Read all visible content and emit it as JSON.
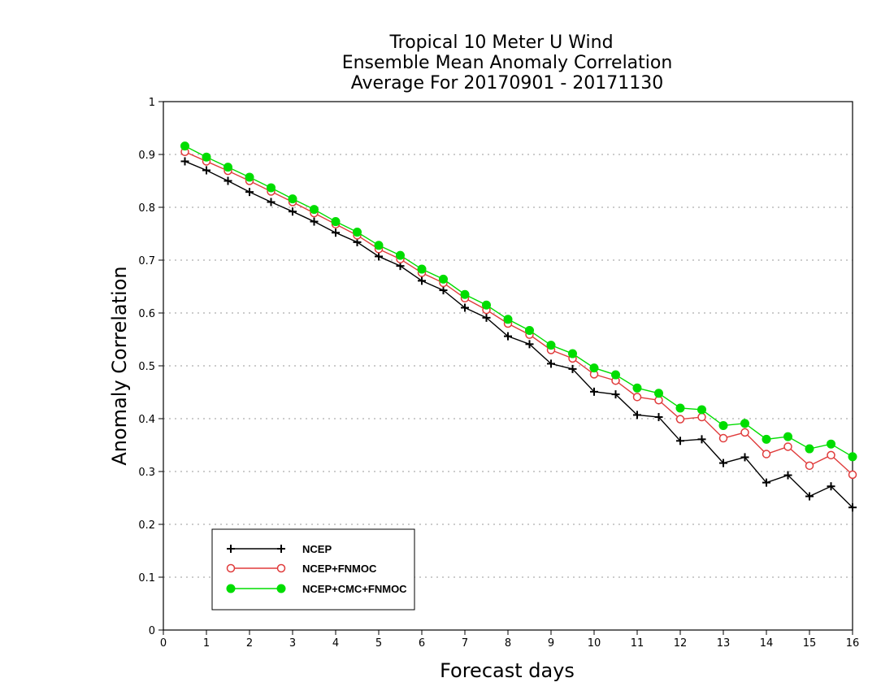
{
  "chart_data": {
    "type": "line",
    "title_lines": [
      "Tropical 10 Meter U Wind",
      "Ensemble Mean Anomaly Correlation",
      "Average For 20170901 - 20171130"
    ],
    "xlabel": "Forecast days",
    "ylabel": "Anomaly Correlation",
    "xlim": [
      0,
      16
    ],
    "ylim": [
      0,
      1
    ],
    "x_ticks": [
      "0",
      "1",
      "2",
      "3",
      "4",
      "5",
      "6",
      "7",
      "8",
      "9",
      "10",
      "11",
      "12",
      "13",
      "14",
      "15",
      "16"
    ],
    "y_ticks": [
      "0",
      "0.1",
      "0.2",
      "0.3",
      "0.4",
      "0.5",
      "0.6",
      "0.7",
      "0.8",
      "0.9",
      "1"
    ],
    "grid": "horizontal dotted",
    "legend_position": "bottom-left",
    "x": [
      0.5,
      1,
      1.5,
      2,
      2.5,
      3,
      3.5,
      4,
      4.5,
      5,
      5.5,
      6,
      6.5,
      7,
      7.5,
      8,
      8.5,
      9,
      9.5,
      10,
      10.5,
      11,
      11.5,
      12,
      12.5,
      13,
      13.5,
      14,
      14.5,
      15,
      15.5,
      16
    ],
    "series": [
      {
        "name": "NCEP",
        "color": "#000000",
        "marker": "plus",
        "values": [
          0.887,
          0.87,
          0.85,
          0.829,
          0.81,
          0.792,
          0.773,
          0.752,
          0.734,
          0.707,
          0.689,
          0.661,
          0.643,
          0.61,
          0.591,
          0.556,
          0.541,
          0.504,
          0.494,
          0.451,
          0.446,
          0.407,
          0.403,
          0.358,
          0.361,
          0.316,
          0.327,
          0.279,
          0.293,
          0.253,
          0.272,
          0.232
        ]
      },
      {
        "name": "NCEP+FNMOC",
        "color": "#e03c3c",
        "marker": "open-circle",
        "values": [
          0.905,
          0.887,
          0.869,
          0.85,
          0.83,
          0.81,
          0.789,
          0.768,
          0.747,
          0.721,
          0.702,
          0.676,
          0.657,
          0.628,
          0.606,
          0.58,
          0.559,
          0.53,
          0.514,
          0.484,
          0.472,
          0.441,
          0.435,
          0.399,
          0.403,
          0.363,
          0.374,
          0.333,
          0.347,
          0.311,
          0.331,
          0.294
        ]
      },
      {
        "name": "NCEP+CMC+FNMOC",
        "color": "#00dd00",
        "marker": "filled-circle",
        "values": [
          0.916,
          0.895,
          0.876,
          0.857,
          0.837,
          0.816,
          0.796,
          0.773,
          0.753,
          0.728,
          0.709,
          0.683,
          0.664,
          0.635,
          0.615,
          0.588,
          0.567,
          0.539,
          0.523,
          0.496,
          0.483,
          0.458,
          0.448,
          0.42,
          0.417,
          0.387,
          0.391,
          0.361,
          0.366,
          0.343,
          0.352,
          0.328
        ]
      }
    ]
  }
}
